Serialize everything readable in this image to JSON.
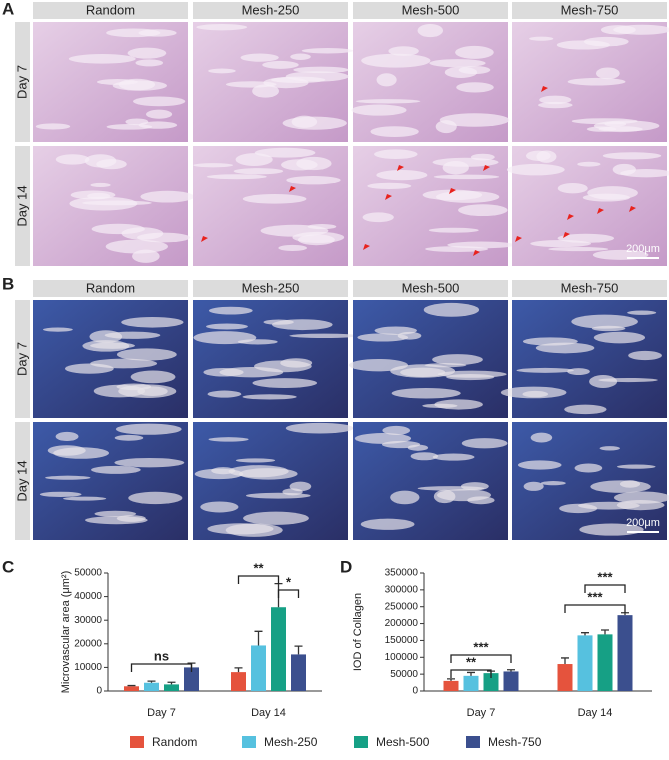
{
  "panels": {
    "a": "A",
    "b": "B",
    "c": "C",
    "d": "D"
  },
  "grid_a": {
    "columns": [
      "Random",
      "Mesh-250",
      "Mesh-500",
      "Mesh-750"
    ],
    "rows": [
      "Day 7",
      "Day 14"
    ],
    "scale_bar": "200μm"
  },
  "grid_b": {
    "columns": [
      "Random",
      "Mesh-250",
      "Mesh-500",
      "Mesh-750"
    ],
    "rows": [
      "Day 7",
      "Day 14"
    ],
    "scale_bar": "200μm"
  },
  "chart_data": [
    {
      "type": "bar",
      "y_label": "Microvascular area (μm²)",
      "categories": [
        "Day 7",
        "Day 14"
      ],
      "series": [
        {
          "name": "Random",
          "color": "#e5533d",
          "values": [
            2000,
            8000
          ],
          "errors": [
            300,
            1800
          ]
        },
        {
          "name": "Mesh-250",
          "color": "#56c1df",
          "values": [
            3500,
            19300
          ],
          "errors": [
            700,
            6000
          ]
        },
        {
          "name": "Mesh-500",
          "color": "#16a085",
          "values": [
            2800,
            35500
          ],
          "errors": [
            900,
            10000
          ]
        },
        {
          "name": "Mesh-750",
          "color": "#3b4f8e",
          "values": [
            10000,
            15500
          ],
          "errors": [
            1800,
            3500
          ]
        }
      ],
      "ylim": [
        0,
        50000
      ],
      "yticks": [
        0,
        10000,
        20000,
        30000,
        40000,
        50000
      ],
      "annotations": [
        "ns",
        "**",
        "*"
      ]
    },
    {
      "type": "bar",
      "y_label": "IOD of Collagen",
      "categories": [
        "Day 7",
        "Day 14"
      ],
      "series": [
        {
          "name": "Random",
          "color": "#e5533d",
          "values": [
            30000,
            80000
          ],
          "errors": [
            6000,
            18000
          ]
        },
        {
          "name": "Mesh-250",
          "color": "#56c1df",
          "values": [
            45000,
            165000
          ],
          "errors": [
            10000,
            8000
          ]
        },
        {
          "name": "Mesh-500",
          "color": "#16a085",
          "values": [
            53000,
            168000
          ],
          "errors": [
            6000,
            13000
          ]
        },
        {
          "name": "Mesh-750",
          "color": "#3b4f8e",
          "values": [
            58000,
            225000
          ],
          "errors": [
            5000,
            7000
          ]
        }
      ],
      "ylim": [
        0,
        350000
      ],
      "yticks": [
        0,
        50000,
        100000,
        150000,
        200000,
        250000,
        300000,
        350000
      ],
      "annotations": [
        "**",
        "***",
        "***",
        "***"
      ]
    }
  ]
}
